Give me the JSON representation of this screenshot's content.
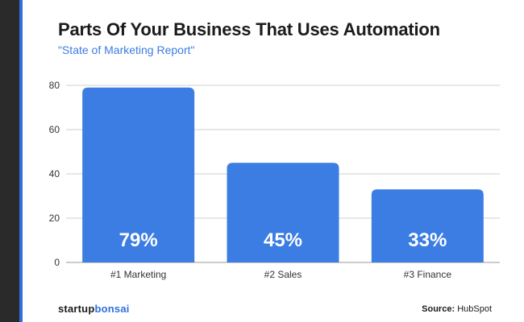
{
  "title": "Parts Of Your Business That Uses Automation",
  "subtitle": "\"State of Marketing Report\"",
  "brand": {
    "part1": "startup",
    "part2": "bonsai"
  },
  "source": {
    "label": "Source:",
    "value": "HubSpot"
  },
  "colors": {
    "bar": "#3b7de3",
    "brand_accent": "#2f6fe0",
    "rail": "#2a2a2a"
  },
  "chart_data": {
    "type": "bar",
    "categories": [
      "#1 Marketing",
      "#2 Sales",
      "#3 Finance"
    ],
    "values": [
      79,
      45,
      33
    ],
    "data_labels": [
      "79%",
      "45%",
      "33%"
    ],
    "ylim": [
      0,
      80
    ],
    "yticks": [
      0,
      20,
      40,
      60,
      80
    ],
    "grid": true
  }
}
